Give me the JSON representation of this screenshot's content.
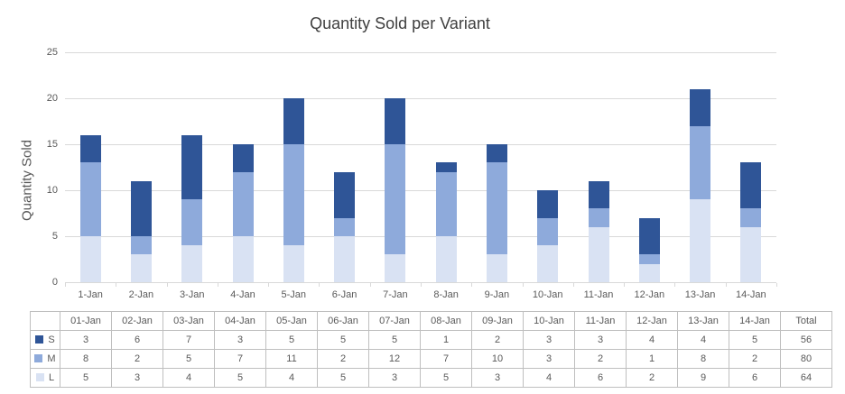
{
  "chart_data": {
    "type": "bar",
    "stacked": true,
    "title": "Quantity Sold per Variant",
    "ylabel": "Quantity Sold",
    "xlabel": "",
    "ylim": [
      0,
      25
    ],
    "yticks": [
      0,
      5,
      10,
      15,
      20,
      25
    ],
    "grid": "horizontal",
    "legend_position": "keys shown beside row labels in data table",
    "categories": [
      "1-Jan",
      "2-Jan",
      "3-Jan",
      "4-Jan",
      "5-Jan",
      "6-Jan",
      "7-Jan",
      "8-Jan",
      "9-Jan",
      "10-Jan",
      "11-Jan",
      "12-Jan",
      "13-Jan",
      "14-Jan"
    ],
    "series": [
      {
        "name": "S",
        "color": "#2F5597",
        "values": [
          3,
          6,
          7,
          3,
          5,
          5,
          5,
          1,
          2,
          3,
          3,
          4,
          4,
          5
        ]
      },
      {
        "name": "M",
        "color": "#8EAADB",
        "values": [
          8,
          2,
          5,
          7,
          11,
          2,
          12,
          7,
          10,
          3,
          2,
          1,
          8,
          2
        ]
      },
      {
        "name": "L",
        "color": "#D9E2F3",
        "values": [
          5,
          3,
          4,
          5,
          4,
          5,
          3,
          5,
          3,
          4,
          6,
          2,
          9,
          6
        ]
      }
    ],
    "stack_order_bottom_to_top": [
      "L",
      "M",
      "S"
    ],
    "totals": {
      "S": 56,
      "M": 80,
      "L": 64
    }
  },
  "table": {
    "corner_label": "",
    "columns": [
      "01-Jan",
      "02-Jan",
      "03-Jan",
      "04-Jan",
      "05-Jan",
      "06-Jan",
      "07-Jan",
      "08-Jan",
      "09-Jan",
      "10-Jan",
      "11-Jan",
      "12-Jan",
      "13-Jan",
      "14-Jan",
      "Total"
    ],
    "rows": [
      {
        "label": "S",
        "swatch_color": "#2F5597",
        "values": [
          3,
          6,
          7,
          3,
          5,
          5,
          5,
          1,
          2,
          3,
          3,
          4,
          4,
          5,
          56
        ]
      },
      {
        "label": "M",
        "swatch_color": "#8EAADB",
        "values": [
          8,
          2,
          5,
          7,
          11,
          2,
          12,
          7,
          10,
          3,
          2,
          1,
          8,
          2,
          80
        ]
      },
      {
        "label": "L",
        "swatch_color": "#D9E2F3",
        "values": [
          5,
          3,
          4,
          5,
          4,
          5,
          3,
          5,
          3,
          4,
          6,
          2,
          9,
          6,
          64
        ]
      }
    ]
  },
  "colors": {
    "series_s": "#2F5597",
    "series_m": "#8EAADB",
    "series_l": "#D9E2F3",
    "gridline": "#D9D9D9",
    "table_border": "#BFBFBF",
    "axis_text": "#595959",
    "title_text": "#404040"
  }
}
